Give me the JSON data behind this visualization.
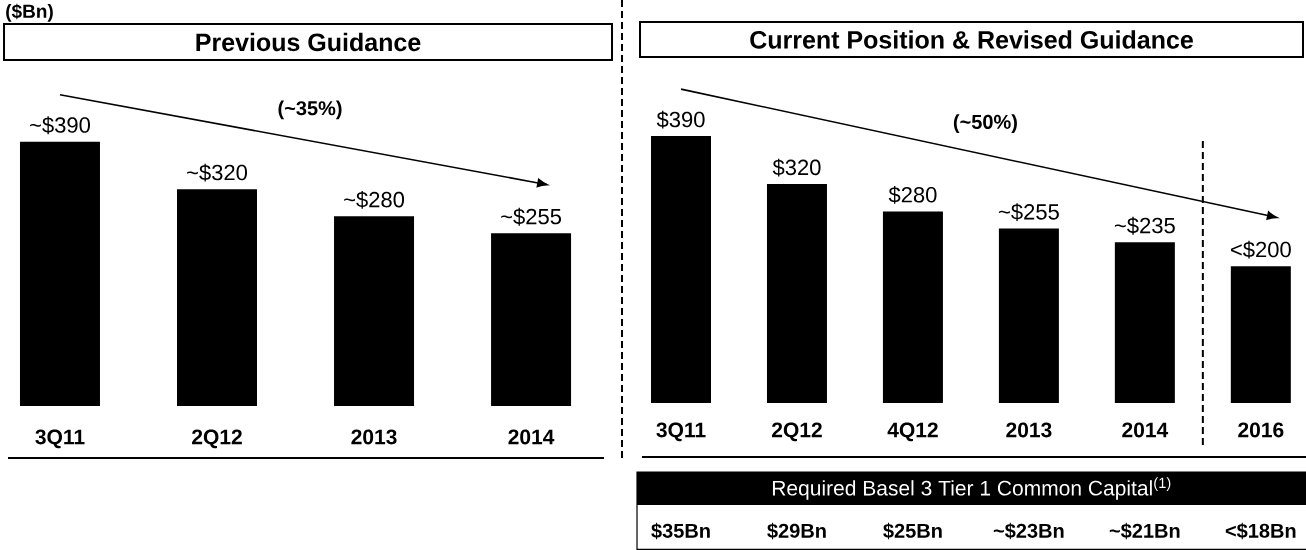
{
  "chart_data": [
    {
      "type": "bar",
      "title": "Previous Guidance",
      "ylabel": "($Bn)",
      "categories": [
        "3Q11",
        "2Q12",
        "2013",
        "2014"
      ],
      "values": [
        390,
        320,
        280,
        255
      ],
      "value_labels": [
        "~$390",
        "~$320",
        "~$280",
        "~$255"
      ],
      "color": "#000000",
      "tick_labels": "x",
      "annotations": [
        "(~35%)"
      ]
    },
    {
      "type": "bar",
      "title": "Current Position & Revised Guidance",
      "categories": [
        "3Q11",
        "2Q12",
        "4Q12",
        "2013",
        "2014",
        "2016"
      ],
      "values": [
        390,
        320,
        280,
        255,
        235,
        200
      ],
      "value_labels": [
        "$390",
        "$320",
        "$280",
        "~$255",
        "~$235",
        "<$200"
      ],
      "color": "#000000",
      "tick_labels": "x",
      "annotations": [
        "(~50%)"
      ]
    },
    {
      "type": "other",
      "title": "Required Basel 3 Tier 1 Common Capital$^{(1)}$",
      "annotations": [
        "$35Bn",
        "$29Bn",
        "$25Bn",
        "~$23Bn",
        "~$21Bn",
        "<$18Bn"
      ]
    }
  ]
}
